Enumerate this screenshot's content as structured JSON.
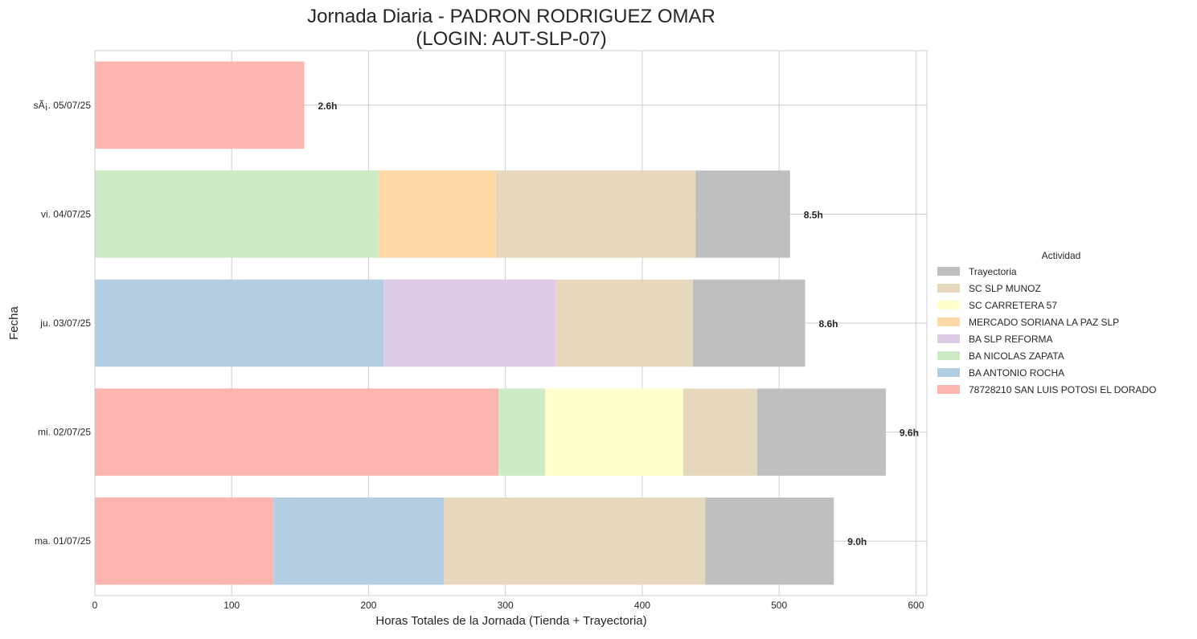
{
  "chart_data": {
    "type": "bar",
    "orientation": "horizontal",
    "stacked": true,
    "title": "Jornada Diaria - PADRON RODRIGUEZ OMAR",
    "subtitle": "(LOGIN: AUT-SLP-07)",
    "xlabel": "Horas Totales de la Jornada (Tienda + Trayectoria)",
    "ylabel": "Fecha",
    "xlim": [
      0,
      608
    ],
    "xticks": [
      0,
      100,
      200,
      300,
      400,
      500,
      600
    ],
    "grid": true,
    "legend": {
      "title": "Actividad",
      "placement": "center-right"
    },
    "categories": [
      "ma. 01/07/25",
      "mi. 02/07/25",
      "ju. 03/07/25",
      "vi. 04/07/25",
      "sÃ¡. 05/07/25"
    ],
    "totals_labels": [
      "9.0h",
      "9.6h",
      "8.6h",
      "8.5h",
      "2.6h"
    ],
    "series": [
      {
        "name": "78728210 SAN LUIS POTOSI EL DORADO",
        "color": "#fbb4ae",
        "values": [
          130,
          295,
          0,
          0,
          153
        ]
      },
      {
        "name": "BA ANTONIO ROCHA",
        "color": "#b3cde3",
        "values": [
          125,
          0,
          211,
          0,
          0
        ]
      },
      {
        "name": "BA NICOLAS ZAPATA",
        "color": "#ccebc5",
        "values": [
          0,
          34,
          0,
          207,
          0
        ]
      },
      {
        "name": "BA SLP REFORMA",
        "color": "#decbe4",
        "values": [
          0,
          0,
          126,
          0,
          0
        ]
      },
      {
        "name": "MERCADO SORIANA LA PAZ SLP",
        "color": "#fed9a6",
        "values": [
          0,
          0,
          0,
          86,
          0
        ]
      },
      {
        "name": "SC CARRETERA 57",
        "color": "#ffffcc",
        "values": [
          0,
          101,
          0,
          0,
          0
        ]
      },
      {
        "name": "SC SLP MUNOZ",
        "color": "#e5d8bd",
        "values": [
          191,
          54,
          100,
          146,
          0
        ]
      },
      {
        "name": "Trayectoria",
        "color": "#bfbfbf",
        "values": [
          94,
          94,
          82,
          69,
          0
        ]
      }
    ]
  }
}
